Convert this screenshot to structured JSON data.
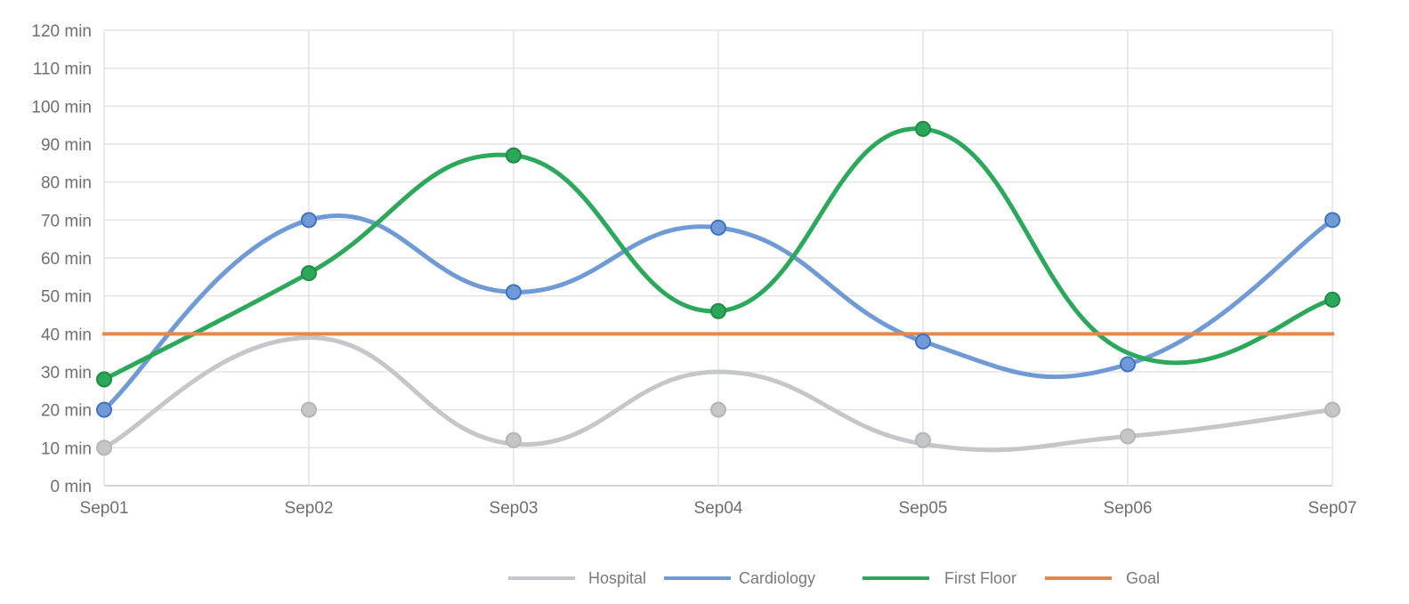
{
  "chart_data": {
    "type": "line",
    "title": "",
    "xlabel": "",
    "ylabel": "",
    "x": [
      "Sep01",
      "Sep02",
      "Sep03",
      "Sep04",
      "Sep05",
      "Sep06",
      "Sep07"
    ],
    "y_ticks": [
      "0 min",
      "10 min",
      "20 min",
      "30 min",
      "40 min",
      "50 min",
      "60 min",
      "70 min",
      "80 min",
      "90 min",
      "100 min",
      "110 min",
      "120 min"
    ],
    "ylim": [
      0,
      120
    ],
    "grid": true,
    "legend_position": "bottom",
    "series": [
      {
        "name": "Hospital",
        "color": "#c4c6c8",
        "curve_values": [
          10,
          39,
          11,
          30,
          11,
          13,
          20
        ],
        "marker_values": [
          10,
          20,
          12,
          20,
          12,
          13,
          20
        ]
      },
      {
        "name": "Cardiology",
        "color": "#6f9ad6",
        "values": [
          20,
          70,
          51,
          68,
          38,
          32,
          70
        ],
        "marker_values": [
          20,
          70,
          51,
          68,
          38,
          32,
          70
        ]
      },
      {
        "name": "First Floor",
        "color": "#2ba85a",
        "values": [
          28,
          56,
          87,
          46,
          94,
          35,
          49
        ],
        "marker_values": [
          28,
          56,
          87,
          46,
          94,
          null,
          49
        ]
      },
      {
        "name": "Goal",
        "color": "#e5884c",
        "values": [
          40,
          40,
          40,
          40,
          40,
          40,
          40
        ],
        "marker_values": []
      }
    ]
  }
}
